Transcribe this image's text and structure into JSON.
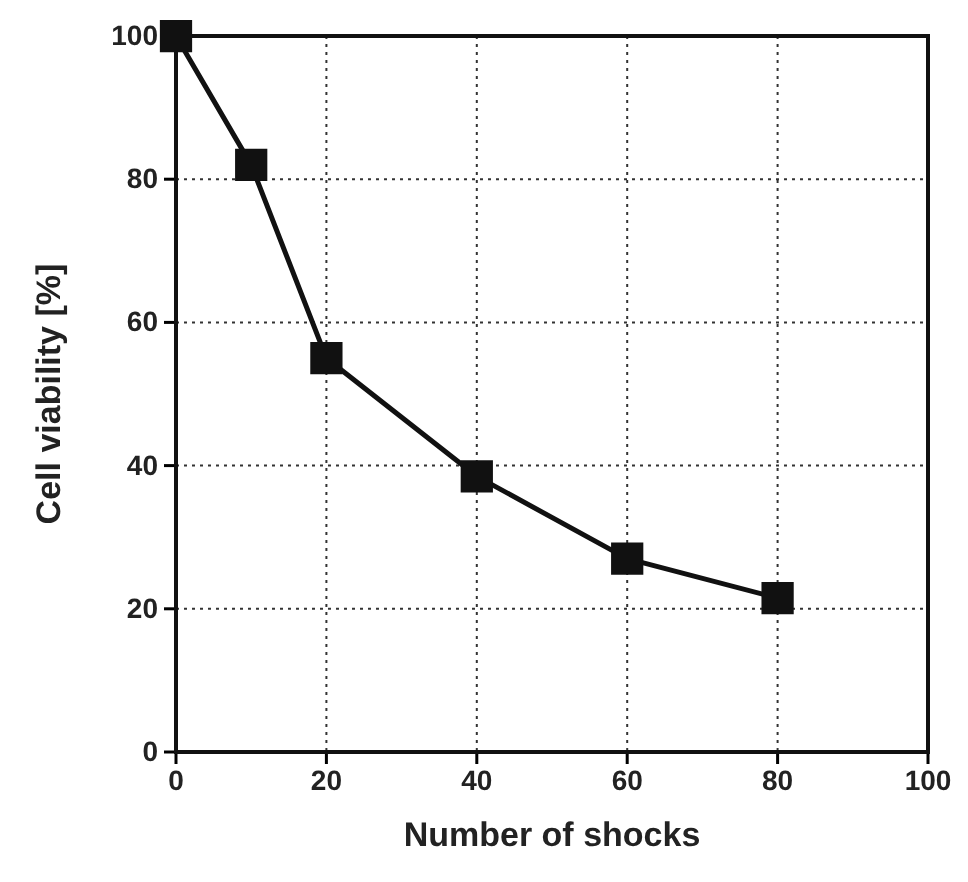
{
  "chart_data": {
    "type": "line",
    "xlabel": "Number of shocks",
    "ylabel": "Cell viability [%]",
    "x": [
      0,
      10,
      20,
      40,
      60,
      80
    ],
    "series": [
      {
        "color": "#111111",
        "values": [
          100,
          82,
          55,
          38.5,
          27,
          21.5
        ]
      }
    ],
    "xlim": [
      0,
      100
    ],
    "xticks": [
      0,
      20,
      40,
      60,
      80,
      100
    ],
    "ylim": [
      0,
      100
    ],
    "yticks": [
      0,
      20,
      40,
      60,
      80,
      100
    ],
    "grid": true,
    "marker": "square",
    "line_style": "solid"
  }
}
